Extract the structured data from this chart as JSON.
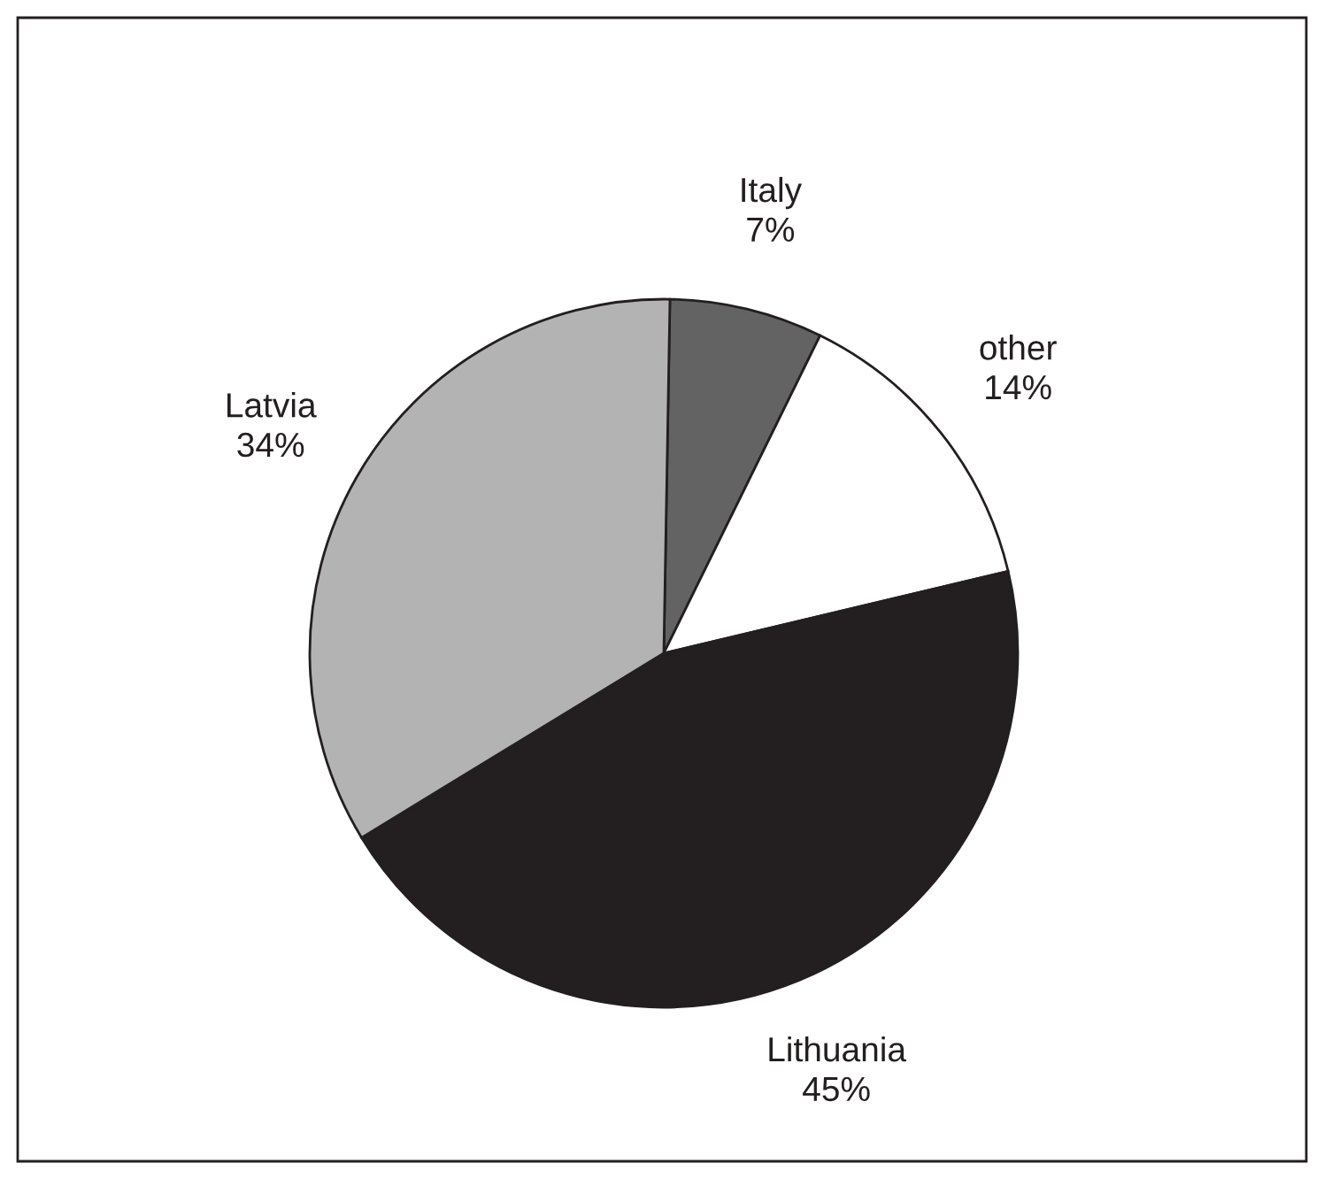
{
  "chart_data": {
    "type": "pie",
    "categories": [
      "Italy",
      "other",
      "Lithuania",
      "Latvia"
    ],
    "values": [
      7,
      14,
      45,
      34
    ],
    "value_labels": [
      "7%",
      "14%",
      "45%",
      "34%"
    ],
    "colors": [
      "#636363",
      "#ffffff",
      "#231f20",
      "#b3b3b3"
    ],
    "legend": false
  }
}
